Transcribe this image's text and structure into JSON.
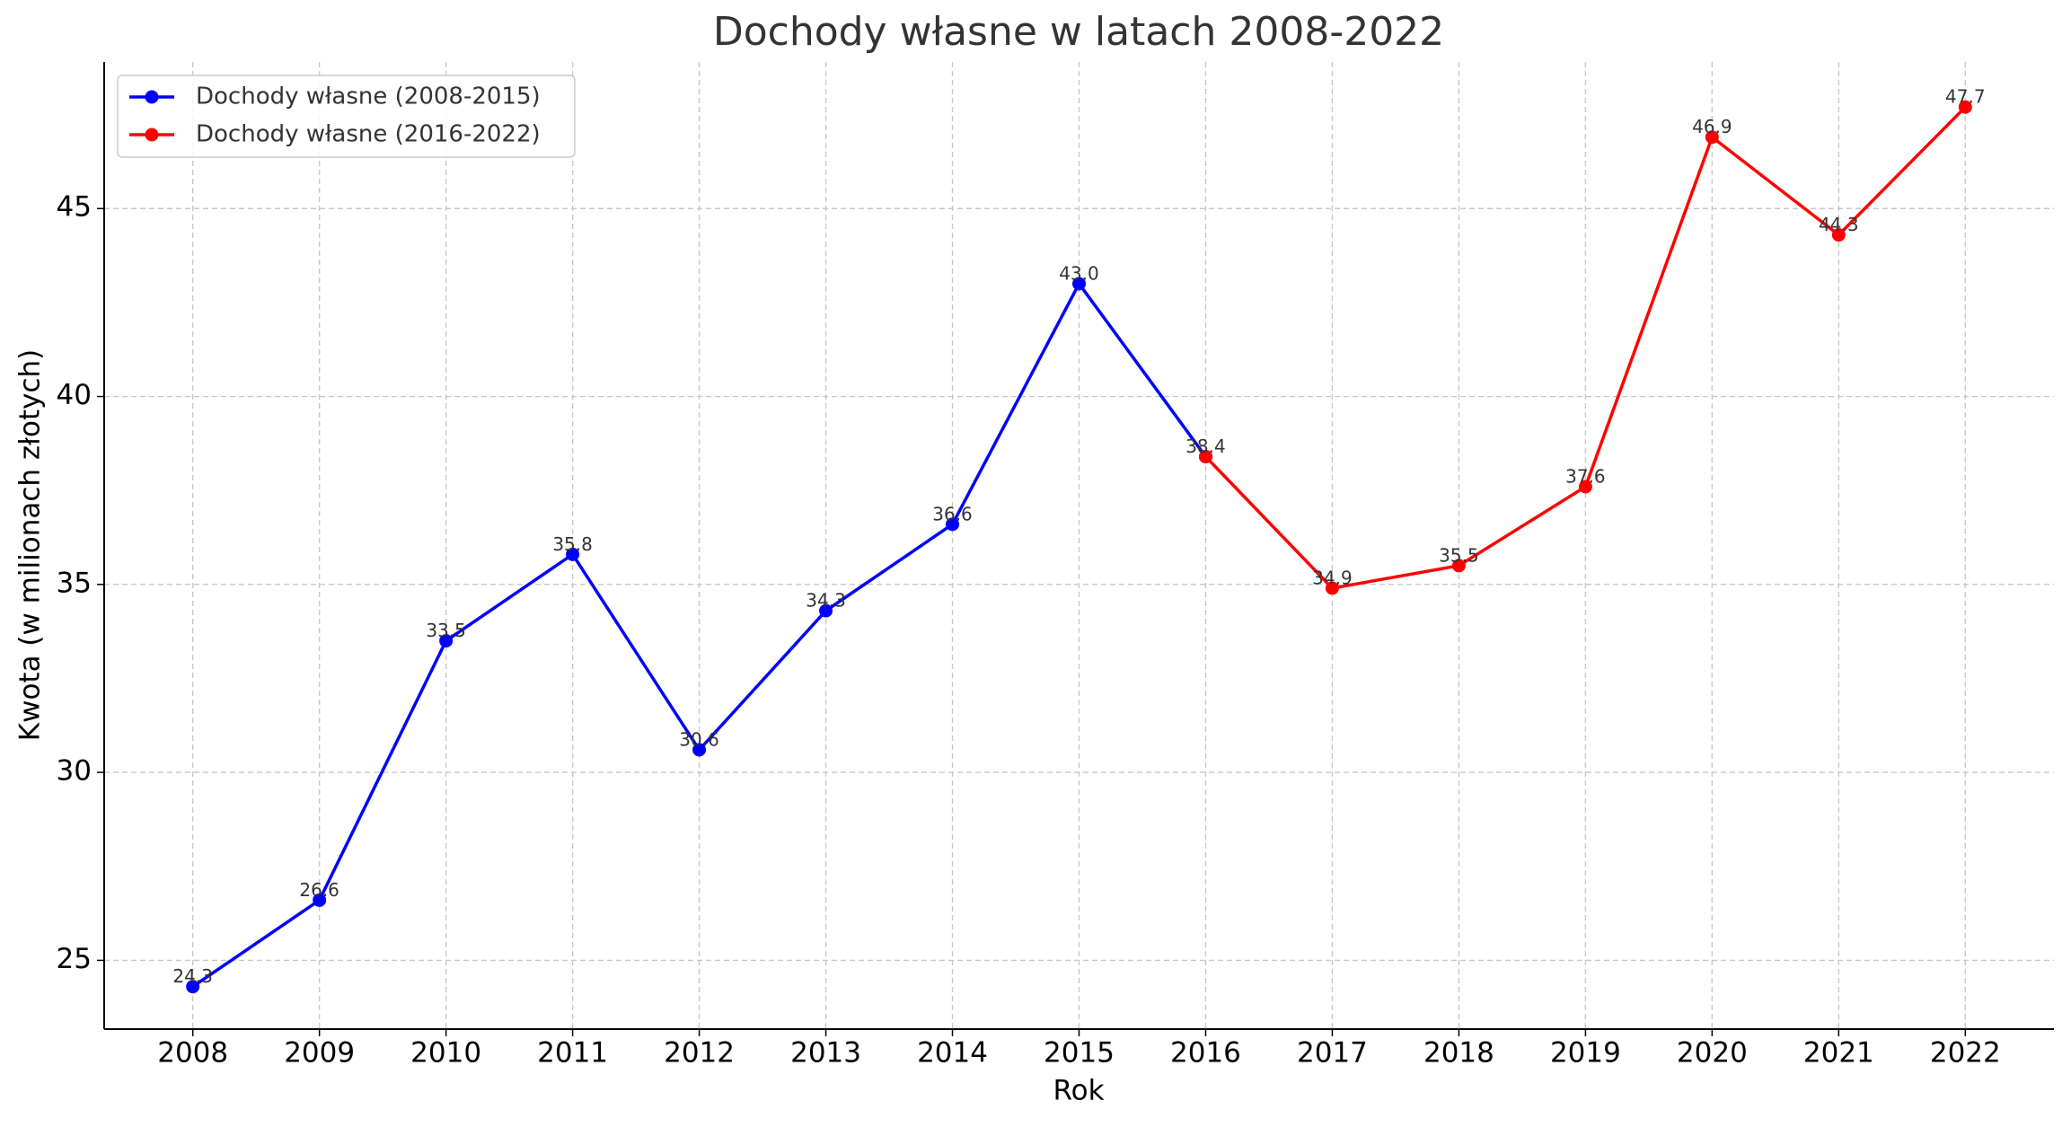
{
  "chart_data": {
    "type": "line",
    "title": "Dochody własne w latach 2008-2022",
    "x_label": "Rok",
    "y_label": "Kwota (w milionach złotych)",
    "x": [
      2008,
      2009,
      2010,
      2011,
      2012,
      2013,
      2014,
      2015,
      2016,
      2017,
      2018,
      2019,
      2020,
      2021,
      2022
    ],
    "series": [
      {
        "name": "Dochody własne (2008-2015)",
        "color": "#0000ff",
        "values": [
          24.3,
          26.6,
          33.5,
          35.8,
          30.6,
          34.3,
          36.6,
          43.0,
          38.4,
          null,
          null,
          null,
          null,
          null,
          null
        ],
        "value_labels": [
          "24.3",
          "26.6",
          "33.5",
          "35.8",
          "30.6",
          "34.3",
          "36.6",
          "43.0",
          null,
          null,
          null,
          null,
          null,
          null,
          null
        ]
      },
      {
        "name": "Dochody własne (2016-2022)",
        "color": "#ff0000",
        "values": [
          null,
          null,
          null,
          null,
          null,
          null,
          null,
          null,
          38.4,
          34.9,
          35.5,
          37.6,
          46.9,
          44.3,
          47.7
        ]
      }
    ],
    "xlim": [
      2007.3,
      2022.7
    ],
    "xticks": [
      2008,
      2009,
      2010,
      2011,
      2012,
      2013,
      2014,
      2015,
      2016,
      2017,
      2018,
      2019,
      2020,
      2021,
      2022
    ],
    "ylim": [
      23.17,
      48.9
    ],
    "yticks": [
      25,
      30,
      35,
      40,
      45
    ],
    "grid": true,
    "legend": "upper-left"
  }
}
